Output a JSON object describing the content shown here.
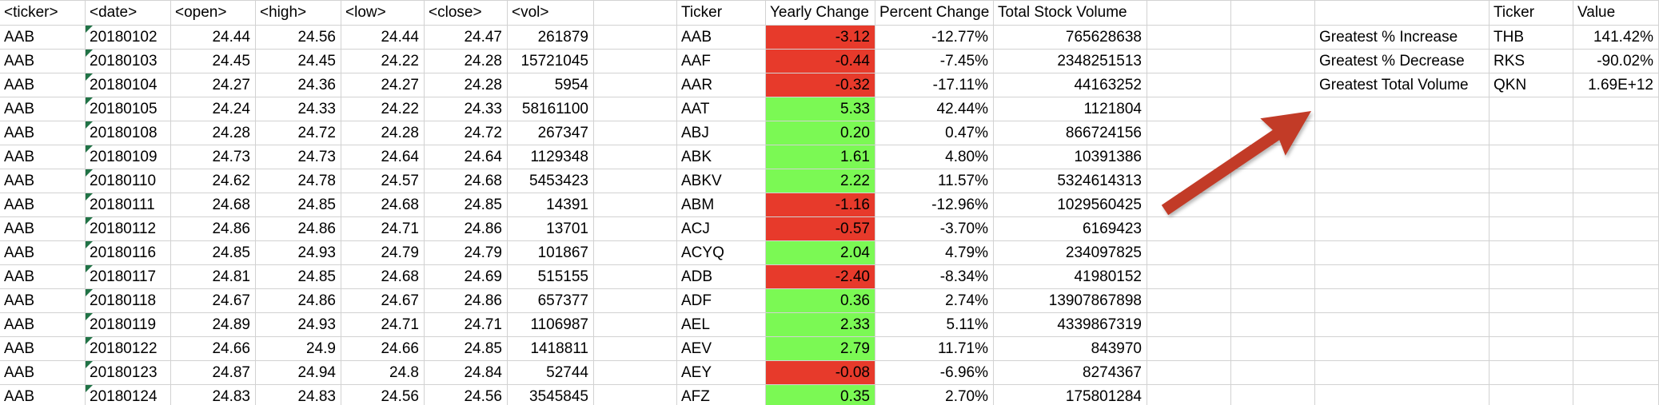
{
  "sheet": {
    "colors": {
      "negative_fill": "#e73a2b",
      "positive_fill": "#7bf954",
      "gridline": "#d2d2d2",
      "error_flag_green": "#217346",
      "arrow_red": "#c23b27"
    },
    "left_table": {
      "headers": [
        "<ticker>",
        "<date>",
        "<open>",
        "<high>",
        "<low>",
        "<close>",
        "<vol>"
      ],
      "rows": [
        [
          "AAB",
          "20180102",
          "24.44",
          "24.56",
          "24.44",
          "24.47",
          "261879"
        ],
        [
          "AAB",
          "20180103",
          "24.45",
          "24.45",
          "24.22",
          "24.28",
          "15721045"
        ],
        [
          "AAB",
          "20180104",
          "24.27",
          "24.36",
          "24.27",
          "24.28",
          "5954"
        ],
        [
          "AAB",
          "20180105",
          "24.24",
          "24.33",
          "24.22",
          "24.33",
          "58161100"
        ],
        [
          "AAB",
          "20180108",
          "24.28",
          "24.72",
          "24.28",
          "24.72",
          "267347"
        ],
        [
          "AAB",
          "20180109",
          "24.73",
          "24.73",
          "24.64",
          "24.64",
          "1129348"
        ],
        [
          "AAB",
          "20180110",
          "24.62",
          "24.78",
          "24.57",
          "24.68",
          "5453423"
        ],
        [
          "AAB",
          "20180111",
          "24.68",
          "24.85",
          "24.68",
          "24.85",
          "14391"
        ],
        [
          "AAB",
          "20180112",
          "24.86",
          "24.86",
          "24.71",
          "24.86",
          "13701"
        ],
        [
          "AAB",
          "20180116",
          "24.85",
          "24.93",
          "24.79",
          "24.79",
          "101867"
        ],
        [
          "AAB",
          "20180117",
          "24.81",
          "24.85",
          "24.68",
          "24.69",
          "515155"
        ],
        [
          "AAB",
          "20180118",
          "24.67",
          "24.86",
          "24.67",
          "24.86",
          "657377"
        ],
        [
          "AAB",
          "20180119",
          "24.89",
          "24.93",
          "24.71",
          "24.71",
          "1106987"
        ],
        [
          "AAB",
          "20180122",
          "24.66",
          "24.9",
          "24.66",
          "24.85",
          "1418811"
        ],
        [
          "AAB",
          "20180123",
          "24.87",
          "24.94",
          "24.8",
          "24.84",
          "52744"
        ],
        [
          "AAB",
          "20180124",
          "24.83",
          "24.83",
          "24.56",
          "24.56",
          "3545845"
        ]
      ]
    },
    "summary_table": {
      "headers": [
        "Ticker",
        "Yearly Change",
        "Percent Change",
        "Total Stock Volume"
      ],
      "rows": [
        {
          "ticker": "AAB",
          "yearly_change": "-3.12",
          "trend": "neg",
          "percent_change": "-12.77%",
          "total_volume": "765628638"
        },
        {
          "ticker": "AAF",
          "yearly_change": "-0.44",
          "trend": "neg",
          "percent_change": "-7.45%",
          "total_volume": "2348251513"
        },
        {
          "ticker": "AAR",
          "yearly_change": "-0.32",
          "trend": "neg",
          "percent_change": "-17.11%",
          "total_volume": "44163252"
        },
        {
          "ticker": "AAT",
          "yearly_change": "5.33",
          "trend": "pos",
          "percent_change": "42.44%",
          "total_volume": "1121804"
        },
        {
          "ticker": "ABJ",
          "yearly_change": "0.20",
          "trend": "pos",
          "percent_change": "0.47%",
          "total_volume": "866724156"
        },
        {
          "ticker": "ABK",
          "yearly_change": "1.61",
          "trend": "pos",
          "percent_change": "4.80%",
          "total_volume": "10391386"
        },
        {
          "ticker": "ABKV",
          "yearly_change": "2.22",
          "trend": "pos",
          "percent_change": "11.57%",
          "total_volume": "5324614313"
        },
        {
          "ticker": "ABM",
          "yearly_change": "-1.16",
          "trend": "neg",
          "percent_change": "-12.96%",
          "total_volume": "1029560425"
        },
        {
          "ticker": "ACJ",
          "yearly_change": "-0.57",
          "trend": "neg",
          "percent_change": "-3.70%",
          "total_volume": "6169423"
        },
        {
          "ticker": "ACYQ",
          "yearly_change": "2.04",
          "trend": "pos",
          "percent_change": "4.79%",
          "total_volume": "234097825"
        },
        {
          "ticker": "ADB",
          "yearly_change": "-2.40",
          "trend": "neg",
          "percent_change": "-8.34%",
          "total_volume": "41980152"
        },
        {
          "ticker": "ADF",
          "yearly_change": "0.36",
          "trend": "pos",
          "percent_change": "2.74%",
          "total_volume": "13907867898"
        },
        {
          "ticker": "AEL",
          "yearly_change": "2.33",
          "trend": "pos",
          "percent_change": "5.11%",
          "total_volume": "4339867319"
        },
        {
          "ticker": "AEV",
          "yearly_change": "2.79",
          "trend": "pos",
          "percent_change": "11.71%",
          "total_volume": "843970"
        },
        {
          "ticker": "AEY",
          "yearly_change": "-0.08",
          "trend": "neg",
          "percent_change": "-6.96%",
          "total_volume": "8274367"
        },
        {
          "ticker": "AFZ",
          "yearly_change": "0.35",
          "trend": "pos",
          "percent_change": "2.70%",
          "total_volume": "175801284"
        }
      ]
    },
    "greatest_table": {
      "col_headers": [
        "Ticker",
        "Value"
      ],
      "rows": [
        {
          "label": "Greatest % Increase",
          "ticker": "THB",
          "value": "141.42%"
        },
        {
          "label": "Greatest % Decrease",
          "ticker": "RKS",
          "value": "-90.02%"
        },
        {
          "label": "Greatest Total Volume",
          "ticker": "QKN",
          "value": "1.69E+12"
        }
      ]
    },
    "annotation": {
      "type": "arrow",
      "direction": "up-right",
      "color": "#c23b27"
    }
  }
}
